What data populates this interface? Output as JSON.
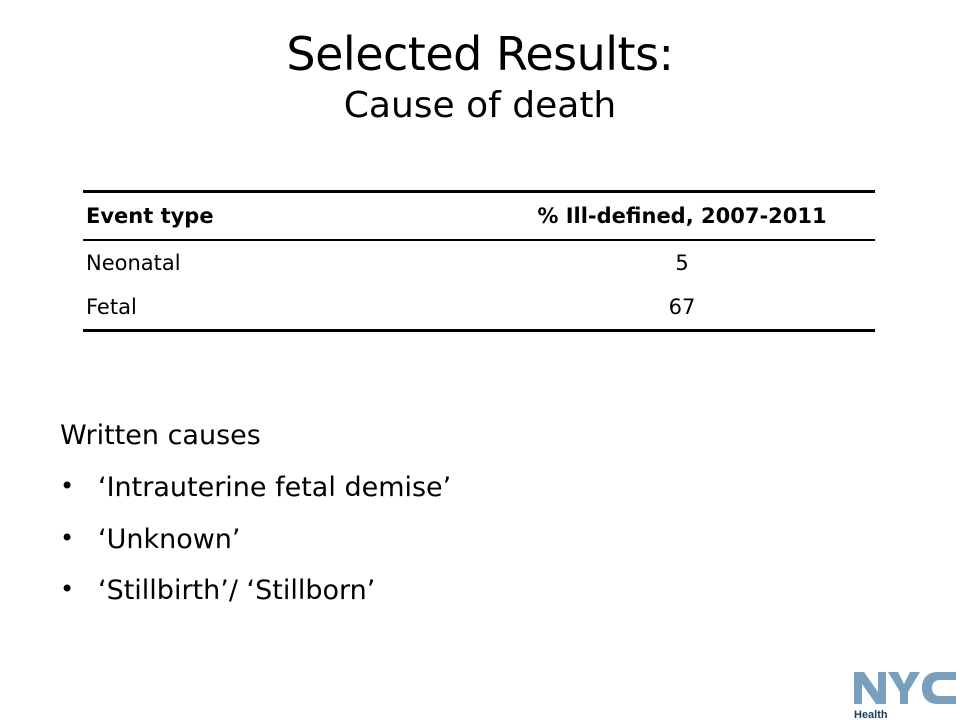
{
  "title": {
    "main": "Selected Results:",
    "sub": "Cause of death"
  },
  "table": {
    "headers": [
      "Event type",
      "% Ill-defined, 2007-2011"
    ],
    "rows": [
      {
        "event": "Neonatal",
        "pct": "5"
      },
      {
        "event": "Fetal",
        "pct": "67"
      }
    ]
  },
  "written_causes": {
    "heading": "Written causes",
    "items": [
      "‘Intrauterine fetal demise’",
      "‘Unknown’",
      "‘Stillbirth’/ ‘Stillborn’"
    ]
  },
  "logo": {
    "letters": "NYC",
    "caption": "Health",
    "color": "#7a9fbd"
  }
}
